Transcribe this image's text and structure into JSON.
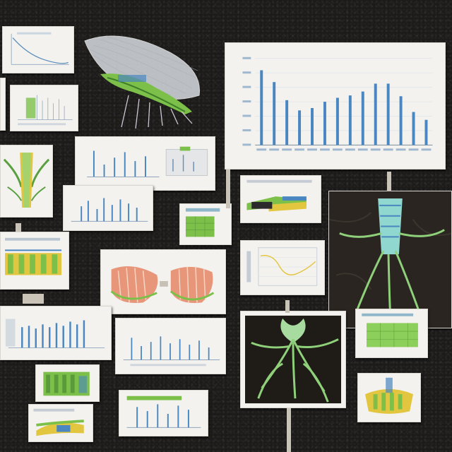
{
  "scene": {
    "background_color": "#1c1b1a",
    "card_color": "#f3f2ee"
  },
  "colors": {
    "blue_bar": "#4a86c0",
    "leaf_green": "#7cc04a",
    "root_green": "#8fd07a",
    "yellow": "#e3c640",
    "salmon": "#e8967a"
  },
  "main_chart": {
    "title": "",
    "xlabel": ""
  },
  "chart_data": {
    "type": "bar",
    "values": [
      95,
      80,
      57,
      44,
      47,
      55,
      60,
      63,
      68,
      78,
      78,
      62,
      42,
      32
    ],
    "ylim": [
      0,
      110
    ],
    "grid": true
  },
  "panels": {
    "top_left_curve": {
      "icon": "line-chart-icon"
    },
    "leaf_ribbed": {
      "icon": "leaf-icon"
    },
    "root_dark": {
      "icon": "root-system-icon"
    },
    "stem_cross": {
      "icon": "stem-icon"
    },
    "seed_pods": {
      "icon": "seed-pod-icon"
    }
  }
}
